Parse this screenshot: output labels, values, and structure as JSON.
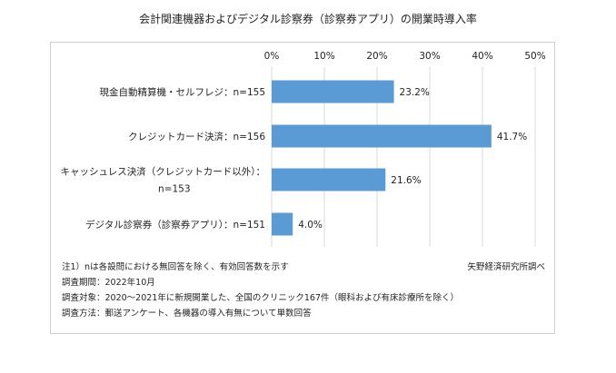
{
  "chart_data": {
    "type": "bar",
    "orientation": "horizontal",
    "title": "会計関連機器およびデジタル診察券（診察券アプリ）の開業時導入率",
    "categories": [
      [
        "現金自動精算機・セルフレジ：n=155"
      ],
      [
        "クレジットカード決済：n=156"
      ],
      [
        "キャッシュレス決済（クレジットカード以外）：",
        "n=153"
      ],
      [
        "デジタル診察券（診察券アプリ）：n=151"
      ]
    ],
    "values": [
      23.2,
      41.7,
      21.6,
      4.0
    ],
    "value_labels": [
      "23.2%",
      "41.7%",
      "21.6%",
      "4.0%"
    ],
    "xlim": [
      0,
      50
    ],
    "ticks": [
      0,
      10,
      20,
      30,
      40,
      50
    ],
    "tick_labels": [
      "0%",
      "10%",
      "20%",
      "30%",
      "40%",
      "50%"
    ],
    "axis_position": "top",
    "grid": true,
    "bar_color": "#5b9bd5",
    "grid_color": "#d9d9d9"
  },
  "notes": [
    "注1）nは各設問における無回答を除く、有効回答数を示す",
    "調査期間：2022年10月",
    "調査対象：2020～2021年に新規開業した、全国のクリニック167件（眼科および有床診療所を除く）",
    "調査方法：郵送アンケート、各機器の導入有無について単数回答"
  ],
  "source": "矢野経済研究所調べ"
}
